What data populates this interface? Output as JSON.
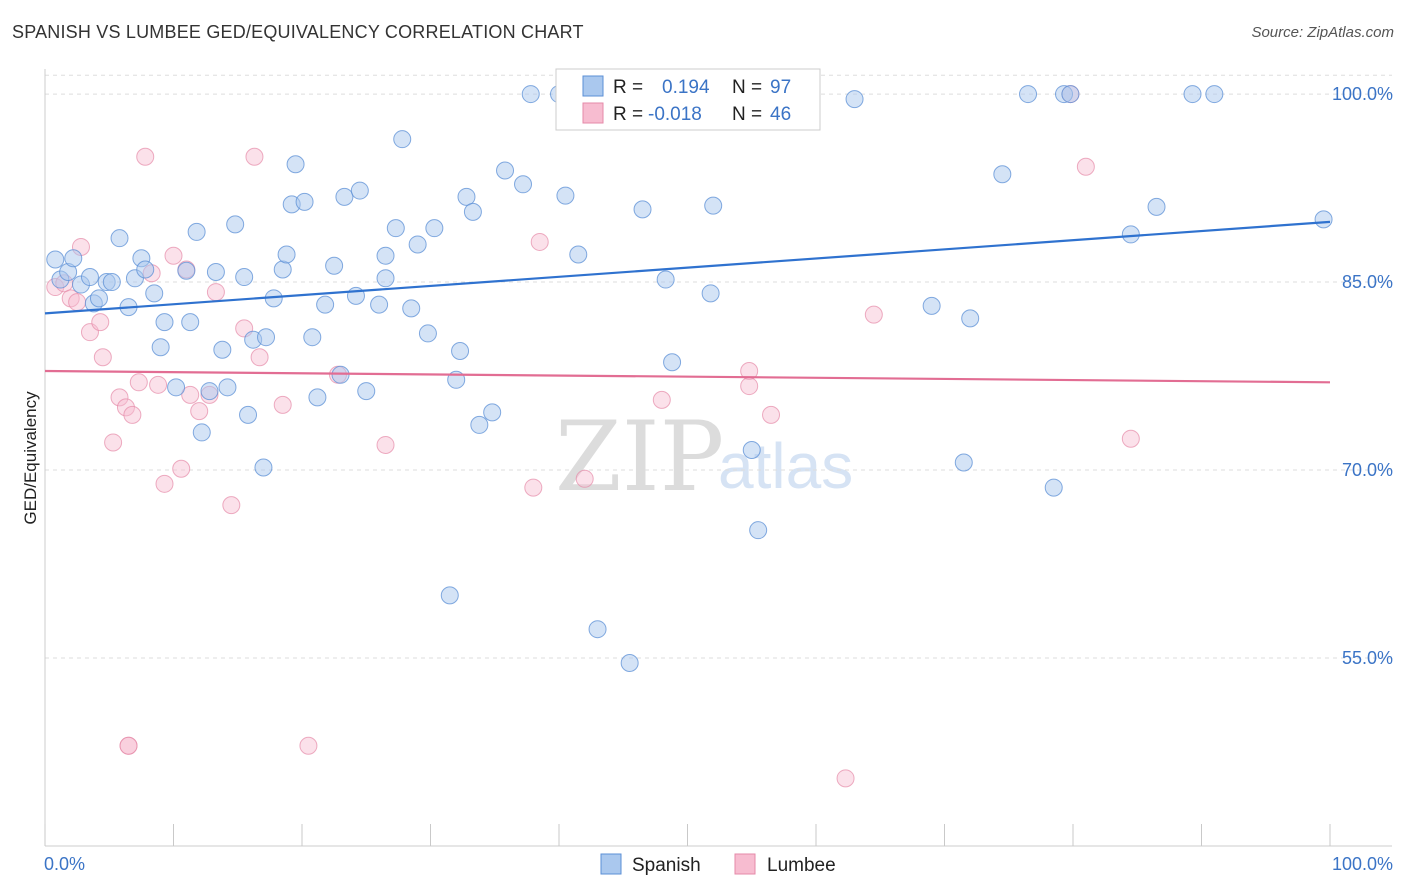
{
  "header": {
    "title": "SPANISH VS LUMBEE GED/EQUIVALENCY CORRELATION CHART",
    "source": "Source: ZipAtlas.com"
  },
  "watermark": {
    "zip": "ZIP",
    "atlas": "atlas"
  },
  "stats": {
    "r_label": "R =",
    "n_label": "N =",
    "spanish": {
      "r": "0.194",
      "n": "97"
    },
    "lumbee": {
      "r": "-0.018",
      "n": "46"
    }
  },
  "colors": {
    "spanish_fill": "#aac8ee",
    "spanish_stroke": "#5b8fd6",
    "spanish_line": "#2f72cf",
    "lumbee_fill": "#f7bcd0",
    "lumbee_stroke": "#e58aa8",
    "lumbee_line": "#e26d93",
    "grid": "#dddddd",
    "tick_label": "#3b74c6"
  },
  "chart_data": {
    "type": "scatter",
    "title": "SPANISH VS LUMBEE GED/EQUIVALENCY CORRELATION CHART",
    "xlabel": "",
    "ylabel": "GED/Equivalency",
    "xlim": [
      0,
      100
    ],
    "ylim": [
      40,
      102
    ],
    "x_tick_labels": [
      "0.0%",
      "100.0%"
    ],
    "y_ticks": [
      55,
      70,
      85,
      100
    ],
    "y_tick_labels": [
      "55.0%",
      "70.0%",
      "85.0%",
      "100.0%"
    ],
    "grid": true,
    "legend_position": "bottom-center",
    "series": [
      {
        "name": "Spanish",
        "r": 0.194,
        "n": 97,
        "trend": {
          "x": [
            0,
            100
          ],
          "y": [
            82.5,
            89.8
          ]
        },
        "points": [
          [
            0.8,
            86.8
          ],
          [
            1.2,
            85.2
          ],
          [
            1.8,
            85.8
          ],
          [
            2.2,
            86.9
          ],
          [
            2.8,
            84.8
          ],
          [
            3.5,
            85.4
          ],
          [
            3.8,
            83.3
          ],
          [
            4.2,
            83.7
          ],
          [
            4.8,
            85.0
          ],
          [
            5.2,
            85.0
          ],
          [
            5.8,
            88.5
          ],
          [
            6.5,
            83.0
          ],
          [
            7.0,
            85.3
          ],
          [
            7.5,
            86.9
          ],
          [
            7.8,
            86.0
          ],
          [
            8.5,
            84.1
          ],
          [
            9.0,
            79.8
          ],
          [
            9.3,
            81.8
          ],
          [
            10.2,
            76.6
          ],
          [
            11.0,
            85.9
          ],
          [
            11.3,
            81.8
          ],
          [
            11.8,
            89.0
          ],
          [
            12.2,
            73.0
          ],
          [
            12.8,
            76.3
          ],
          [
            13.3,
            85.8
          ],
          [
            13.8,
            79.6
          ],
          [
            14.2,
            76.6
          ],
          [
            14.8,
            89.6
          ],
          [
            15.5,
            85.4
          ],
          [
            15.8,
            74.4
          ],
          [
            16.2,
            80.4
          ],
          [
            17.0,
            70.2
          ],
          [
            17.2,
            80.6
          ],
          [
            17.8,
            83.7
          ],
          [
            18.5,
            86.0
          ],
          [
            18.8,
            87.2
          ],
          [
            19.2,
            91.2
          ],
          [
            19.5,
            94.4
          ],
          [
            20.2,
            91.4
          ],
          [
            20.8,
            80.6
          ],
          [
            21.2,
            75.8
          ],
          [
            21.8,
            83.2
          ],
          [
            22.5,
            86.3
          ],
          [
            23.0,
            77.6
          ],
          [
            23.3,
            91.8
          ],
          [
            24.2,
            83.9
          ],
          [
            24.5,
            92.3
          ],
          [
            25.0,
            76.3
          ],
          [
            26.0,
            83.2
          ],
          [
            26.5,
            85.3
          ],
          [
            26.5,
            87.1
          ],
          [
            27.3,
            89.3
          ],
          [
            27.8,
            96.4
          ],
          [
            28.5,
            82.9
          ],
          [
            29.0,
            88.0
          ],
          [
            29.8,
            80.9
          ],
          [
            30.3,
            89.3
          ],
          [
            31.5,
            60.0
          ],
          [
            32.0,
            77.2
          ],
          [
            32.3,
            79.5
          ],
          [
            32.8,
            91.8
          ],
          [
            33.3,
            90.6
          ],
          [
            33.8,
            73.6
          ],
          [
            34.8,
            74.6
          ],
          [
            35.8,
            93.9
          ],
          [
            37.2,
            92.8
          ],
          [
            37.8,
            100.0
          ],
          [
            40.0,
            100.0
          ],
          [
            40.5,
            91.9
          ],
          [
            41.5,
            87.2
          ],
          [
            43.0,
            57.3
          ],
          [
            45.5,
            54.6
          ],
          [
            46.5,
            90.8
          ],
          [
            48.3,
            85.2
          ],
          [
            48.8,
            78.6
          ],
          [
            51.8,
            84.1
          ],
          [
            52.0,
            91.1
          ],
          [
            52.5,
            100.0
          ],
          [
            55.0,
            71.6
          ],
          [
            55.5,
            65.2
          ],
          [
            56.5,
            100.0
          ],
          [
            57.5,
            100.0
          ],
          [
            63.0,
            99.6
          ],
          [
            69.0,
            83.1
          ],
          [
            71.5,
            70.6
          ],
          [
            72.0,
            82.1
          ],
          [
            74.5,
            93.6
          ],
          [
            76.5,
            100.0
          ],
          [
            78.5,
            68.6
          ],
          [
            79.3,
            100.0
          ],
          [
            79.8,
            100.0
          ],
          [
            84.5,
            88.8
          ],
          [
            86.5,
            91.0
          ],
          [
            89.3,
            100.0
          ],
          [
            91.0,
            100.0
          ],
          [
            99.5,
            90.0
          ],
          [
            58.5,
            100.0
          ]
        ]
      },
      {
        "name": "Lumbee",
        "r": -0.018,
        "n": 46,
        "trend": {
          "x": [
            0,
            100
          ],
          "y": [
            77.9,
            77.0
          ]
        },
        "points": [
          [
            0.8,
            84.6
          ],
          [
            1.5,
            84.9
          ],
          [
            2.0,
            83.7
          ],
          [
            2.5,
            83.4
          ],
          [
            2.8,
            87.8
          ],
          [
            3.5,
            81.0
          ],
          [
            4.3,
            81.8
          ],
          [
            4.5,
            79.0
          ],
          [
            5.3,
            72.2
          ],
          [
            5.8,
            75.8
          ],
          [
            6.3,
            75.0
          ],
          [
            6.5,
            48.0
          ],
          [
            6.8,
            74.4
          ],
          [
            7.3,
            77.0
          ],
          [
            7.8,
            95.0
          ],
          [
            8.3,
            85.7
          ],
          [
            8.8,
            76.8
          ],
          [
            9.3,
            68.9
          ],
          [
            10.0,
            87.1
          ],
          [
            10.6,
            70.1
          ],
          [
            11.0,
            86.0
          ],
          [
            11.3,
            76.0
          ],
          [
            12.0,
            74.7
          ],
          [
            12.8,
            76.0
          ],
          [
            13.3,
            84.2
          ],
          [
            14.5,
            67.2
          ],
          [
            15.5,
            81.3
          ],
          [
            16.3,
            95.0
          ],
          [
            16.7,
            79.0
          ],
          [
            18.5,
            75.2
          ],
          [
            20.5,
            48.0
          ],
          [
            22.8,
            77.6
          ],
          [
            26.5,
            72.0
          ],
          [
            38.0,
            68.6
          ],
          [
            38.5,
            88.2
          ],
          [
            42.0,
            69.3
          ],
          [
            48.0,
            75.6
          ],
          [
            54.8,
            77.9
          ],
          [
            54.8,
            76.7
          ],
          [
            56.5,
            74.4
          ],
          [
            62.3,
            45.4
          ],
          [
            64.5,
            82.4
          ],
          [
            81.0,
            94.2
          ],
          [
            84.5,
            72.5
          ],
          [
            79.8,
            100.0
          ],
          [
            6.5,
            48.0
          ]
        ]
      }
    ]
  }
}
